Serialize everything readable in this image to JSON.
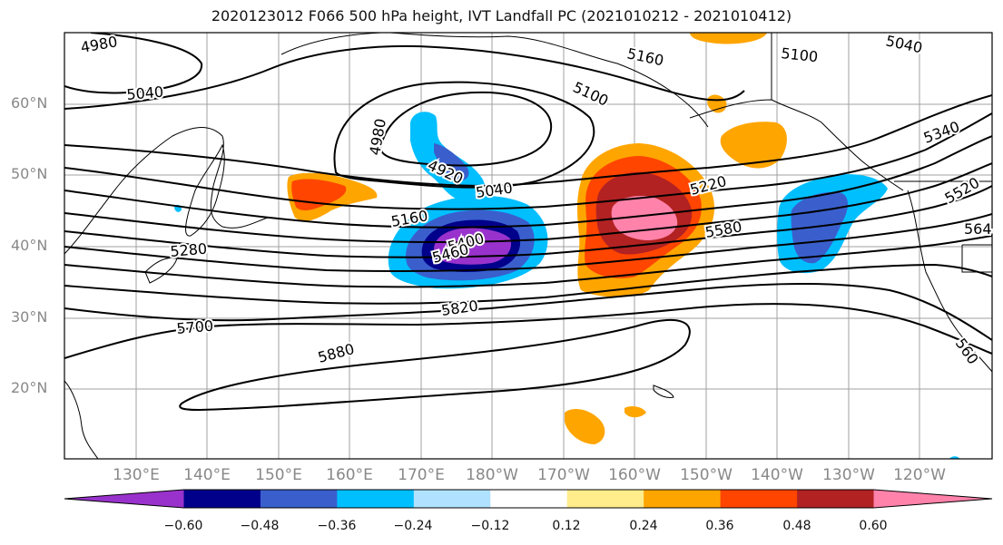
{
  "title": "2020123012 F066 500 hPa height, IVT Landfall PC (2021010212 - 2021010412)",
  "lat_labels": [
    "60°N",
    "50°N",
    "40°N",
    "30°N",
    "20°N"
  ],
  "lon_labels": [
    "130°E",
    "140°E",
    "150°E",
    "160°E",
    "170°E",
    "180°W",
    "170°W",
    "160°W",
    "150°W",
    "140°W",
    "130°W",
    "120°W"
  ],
  "contour_labels": [
    "4980",
    "5040",
    "5160",
    "5100",
    "5100",
    "5040",
    "4980",
    "4920",
    "5040",
    "5160",
    "5400",
    "5460",
    "5280",
    "5220",
    "5580",
    "5340",
    "5520",
    "564",
    "5700",
    "5820",
    "5880",
    "560"
  ],
  "colorbar": {
    "ticks": [
      "−0.60",
      "−0.48",
      "−0.36",
      "−0.24",
      "−0.12",
      "0.12",
      "0.24",
      "0.36",
      "0.48",
      "0.60"
    ],
    "colors": [
      "#9932cc",
      "#00008b",
      "#3a5fcd",
      "#00bfff",
      "#b0e2ff",
      "#ffffff",
      "#ffec8b",
      "#ffa500",
      "#ff4500",
      "#b22222",
      "#ff82ab"
    ]
  }
}
